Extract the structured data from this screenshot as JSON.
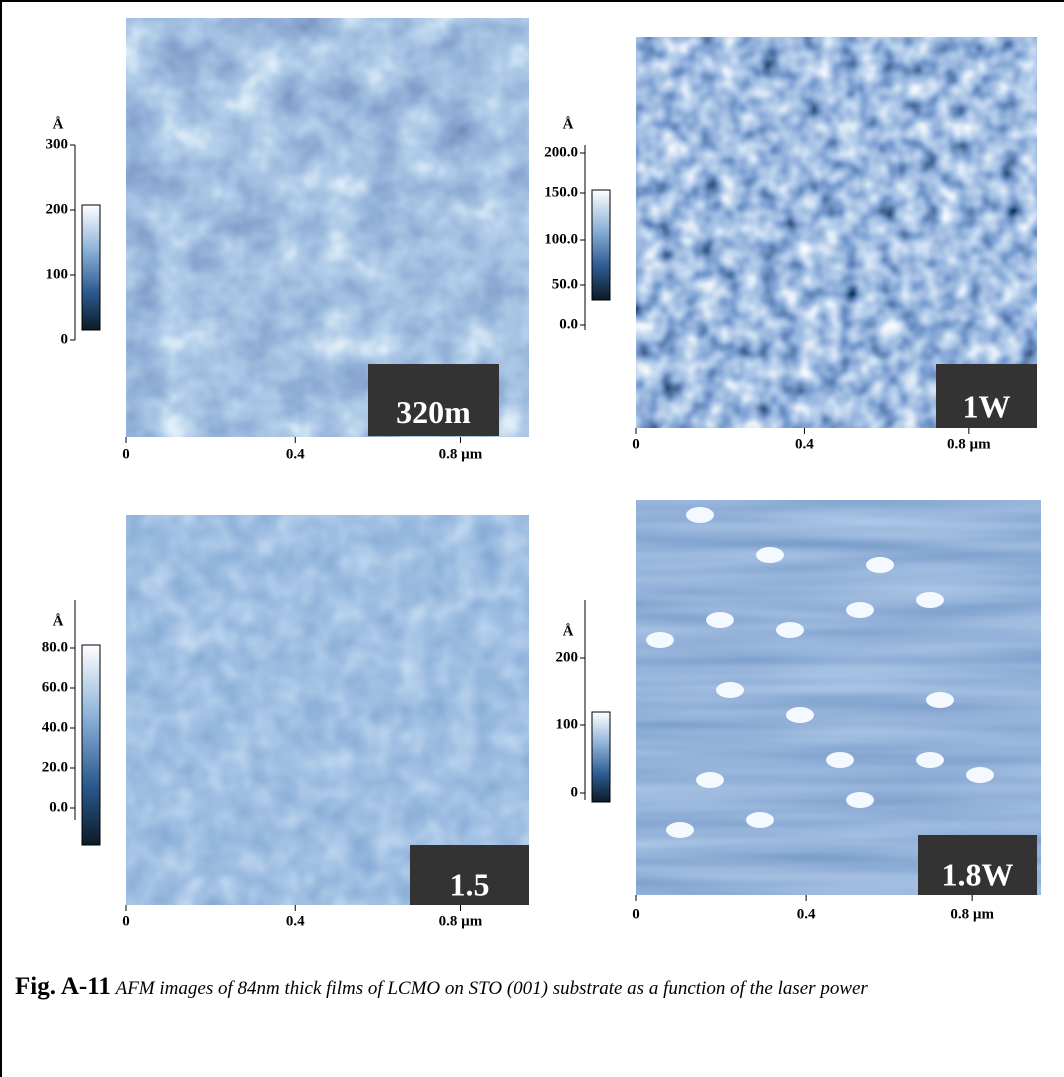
{
  "panels": [
    {
      "scale_unit": "Å",
      "scale_labels": [
        "300",
        "200",
        "100",
        "0"
      ],
      "x_labels": [
        "0",
        "0.4",
        "0.8 µm"
      ],
      "label": "320m"
    },
    {
      "scale_unit": "Å",
      "scale_labels": [
        "200.0",
        "150.0",
        "100.0",
        "50.0",
        "0.0"
      ],
      "x_labels": [
        "0",
        "0.4",
        "0.8 µm"
      ],
      "label": "1W"
    },
    {
      "scale_unit": "Å",
      "scale_labels": [
        "80.0",
        "60.0",
        "40.0",
        "20.0",
        "0.0"
      ],
      "x_labels": [
        "0",
        "0.4",
        "0.8 µm"
      ],
      "label": "1.5"
    },
    {
      "scale_unit": "Å",
      "scale_labels": [
        "200",
        "100",
        "0"
      ],
      "x_labels": [
        "0",
        "0.4",
        "0.8 µm"
      ],
      "label": "1.8W"
    }
  ],
  "caption": {
    "figure": "Fig. A-11",
    "text": "AFM images of 84nm thick films of LCMO on STO (001) substrate as a function of the laser power"
  }
}
